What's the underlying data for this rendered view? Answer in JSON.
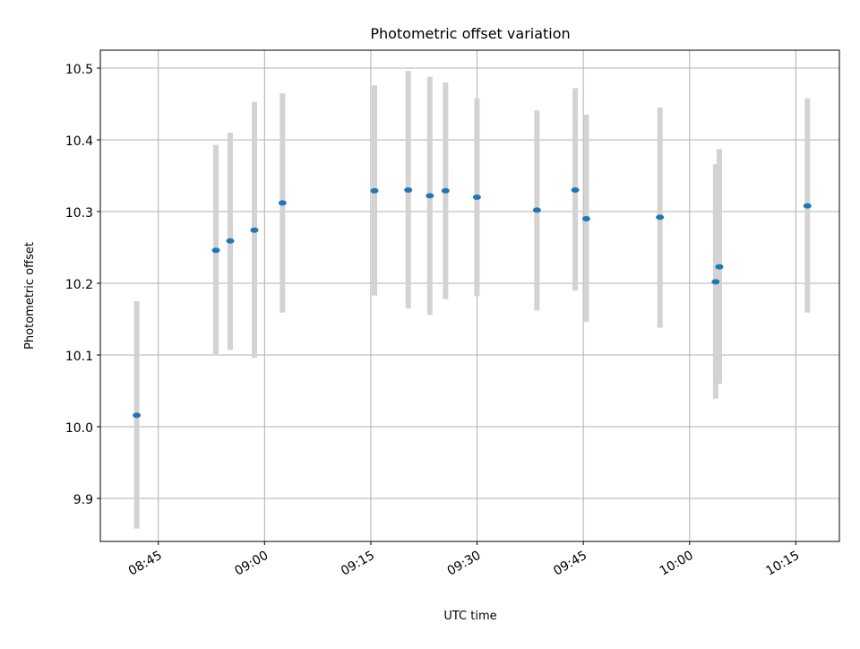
{
  "chart_data": {
    "type": "scatter",
    "title": "Photometric offset variation",
    "xlabel": "UTC time",
    "ylabel": "Photometric offset",
    "x_ticks": [
      "08:45",
      "09:00",
      "09:15",
      "09:30",
      "09:45",
      "10:00",
      "10:15"
    ],
    "y_ticks": [
      "9.9",
      "10.0",
      "10.1",
      "10.2",
      "10.3",
      "10.4",
      "10.5"
    ],
    "xlim": [
      "08:36:49",
      "10:21:09"
    ],
    "ylim": [
      9.84,
      10.525
    ],
    "grid": true,
    "points": [
      {
        "x": "08:41:57",
        "y": 10.016,
        "ylow": 9.858,
        "yhigh": 10.175
      },
      {
        "x": "08:53:08",
        "y": 10.246,
        "ylow": 10.099,
        "yhigh": 10.393
      },
      {
        "x": "08:55:09",
        "y": 10.259,
        "ylow": 10.107,
        "yhigh": 10.41
      },
      {
        "x": "08:58:34",
        "y": 10.274,
        "ylow": 10.096,
        "yhigh": 10.453
      },
      {
        "x": "09:02:32",
        "y": 10.312,
        "ylow": 10.159,
        "yhigh": 10.465
      },
      {
        "x": "09:15:31",
        "y": 10.329,
        "ylow": 10.183,
        "yhigh": 10.476
      },
      {
        "x": "09:20:17",
        "y": 10.33,
        "ylow": 10.165,
        "yhigh": 10.496
      },
      {
        "x": "09:23:20",
        "y": 10.322,
        "ylow": 10.156,
        "yhigh": 10.488
      },
      {
        "x": "09:25:33",
        "y": 10.329,
        "ylow": 10.178,
        "yhigh": 10.48
      },
      {
        "x": "09:29:59",
        "y": 10.32,
        "ylow": 10.182,
        "yhigh": 10.458
      },
      {
        "x": "09:38:27",
        "y": 10.302,
        "ylow": 10.162,
        "yhigh": 10.441
      },
      {
        "x": "09:43:51",
        "y": 10.33,
        "ylow": 10.19,
        "yhigh": 10.472
      },
      {
        "x": "09:45:25",
        "y": 10.29,
        "ylow": 10.146,
        "yhigh": 10.435
      },
      {
        "x": "09:55:49",
        "y": 10.292,
        "ylow": 10.138,
        "yhigh": 10.445
      },
      {
        "x": "10:03:41",
        "y": 10.202,
        "ylow": 10.039,
        "yhigh": 10.366
      },
      {
        "x": "10:04:12",
        "y": 10.223,
        "ylow": 10.06,
        "yhigh": 10.387
      },
      {
        "x": "10:16:38",
        "y": 10.308,
        "ylow": 10.159,
        "yhigh": 10.458
      }
    ],
    "colors": {
      "point": "#1f77b4",
      "errorbar": "#d3d3d3",
      "grid": "#b0b0b0"
    }
  }
}
